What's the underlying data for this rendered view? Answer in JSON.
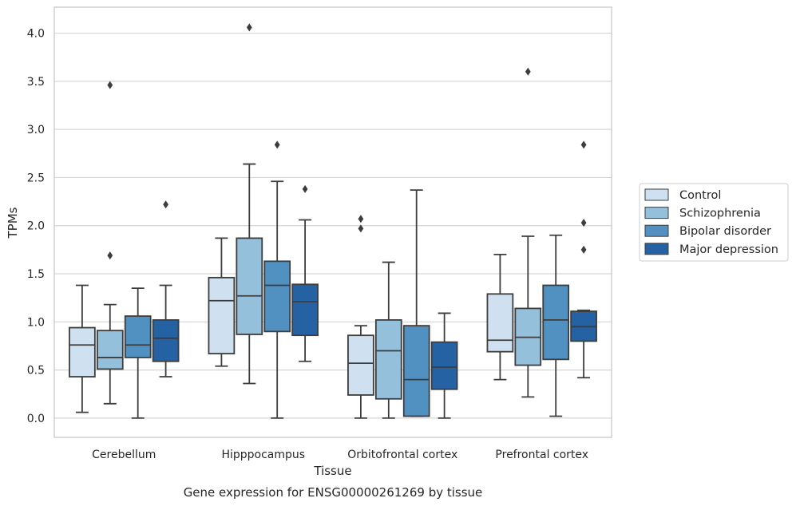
{
  "caption": "Gene expression for ENSG00000261269 by tissue",
  "chart_data": {
    "type": "boxplot",
    "xlabel": "Tissue",
    "ylabel": "TPMs",
    "ylim": [
      -0.2,
      4.27
    ],
    "yticks": [
      0.0,
      0.5,
      1.0,
      1.5,
      2.0,
      2.5,
      3.0,
      3.5,
      4.0
    ],
    "ytick_labels": [
      "0.0",
      "0.5",
      "1.0",
      "1.5",
      "2.0",
      "2.5",
      "3.0",
      "3.5",
      "4.0"
    ],
    "grid": true,
    "legend_position": "right",
    "categories": [
      "Cerebellum",
      "Hipppocampus",
      "Orbitofrontal cortex",
      "Prefrontal cortex"
    ],
    "series": [
      {
        "name": "Control",
        "color": "#cfe0f0",
        "boxes": [
          {
            "whisker_low": 0.06,
            "q1": 0.43,
            "median": 0.76,
            "q3": 0.94,
            "whisker_high": 1.38,
            "outliers": []
          },
          {
            "whisker_low": 0.54,
            "q1": 0.67,
            "median": 1.22,
            "q3": 1.46,
            "whisker_high": 1.87,
            "outliers": []
          },
          {
            "whisker_low": 0.0,
            "q1": 0.24,
            "median": 0.57,
            "q3": 0.86,
            "whisker_high": 0.96,
            "outliers": [
              1.97,
              2.07
            ]
          },
          {
            "whisker_low": 0.4,
            "q1": 0.69,
            "median": 0.81,
            "q3": 1.29,
            "whisker_high": 1.7,
            "outliers": []
          }
        ]
      },
      {
        "name": "Schizophrenia",
        "color": "#95c0db",
        "boxes": [
          {
            "whisker_low": 0.15,
            "q1": 0.51,
            "median": 0.63,
            "q3": 0.91,
            "whisker_high": 1.18,
            "outliers": [
              1.69,
              3.46
            ]
          },
          {
            "whisker_low": 0.36,
            "q1": 0.87,
            "median": 1.27,
            "q3": 1.87,
            "whisker_high": 2.64,
            "outliers": [
              4.06
            ]
          },
          {
            "whisker_low": 0.0,
            "q1": 0.2,
            "median": 0.7,
            "q3": 1.02,
            "whisker_high": 1.62,
            "outliers": []
          },
          {
            "whisker_low": 0.22,
            "q1": 0.55,
            "median": 0.84,
            "q3": 1.14,
            "whisker_high": 1.89,
            "outliers": [
              3.6
            ]
          }
        ]
      },
      {
        "name": "Bipolar disorder",
        "color": "#5091c2",
        "boxes": [
          {
            "whisker_low": 0.0,
            "q1": 0.63,
            "median": 0.76,
            "q3": 1.06,
            "whisker_high": 1.35,
            "outliers": []
          },
          {
            "whisker_low": 0.0,
            "q1": 0.9,
            "median": 1.38,
            "q3": 1.63,
            "whisker_high": 2.46,
            "outliers": [
              2.84
            ]
          },
          {
            "whisker_low": 0.02,
            "q1": 0.02,
            "median": 0.4,
            "q3": 0.96,
            "whisker_high": 2.37,
            "outliers": []
          },
          {
            "whisker_low": 0.02,
            "q1": 0.61,
            "median": 1.02,
            "q3": 1.38,
            "whisker_high": 1.9,
            "outliers": []
          }
        ]
      },
      {
        "name": "Major depression",
        "color": "#2462a4",
        "boxes": [
          {
            "whisker_low": 0.43,
            "q1": 0.59,
            "median": 0.83,
            "q3": 1.02,
            "whisker_high": 1.38,
            "outliers": [
              2.22
            ]
          },
          {
            "whisker_low": 0.59,
            "q1": 0.86,
            "median": 1.21,
            "q3": 1.39,
            "whisker_high": 2.06,
            "outliers": [
              2.38
            ]
          },
          {
            "whisker_low": 0.0,
            "q1": 0.3,
            "median": 0.53,
            "q3": 0.79,
            "whisker_high": 1.09,
            "outliers": []
          },
          {
            "whisker_low": 0.42,
            "q1": 0.8,
            "median": 0.95,
            "q3": 1.11,
            "whisker_high": 1.12,
            "outliers": [
              1.75,
              2.03,
              2.84
            ]
          }
        ]
      }
    ]
  }
}
